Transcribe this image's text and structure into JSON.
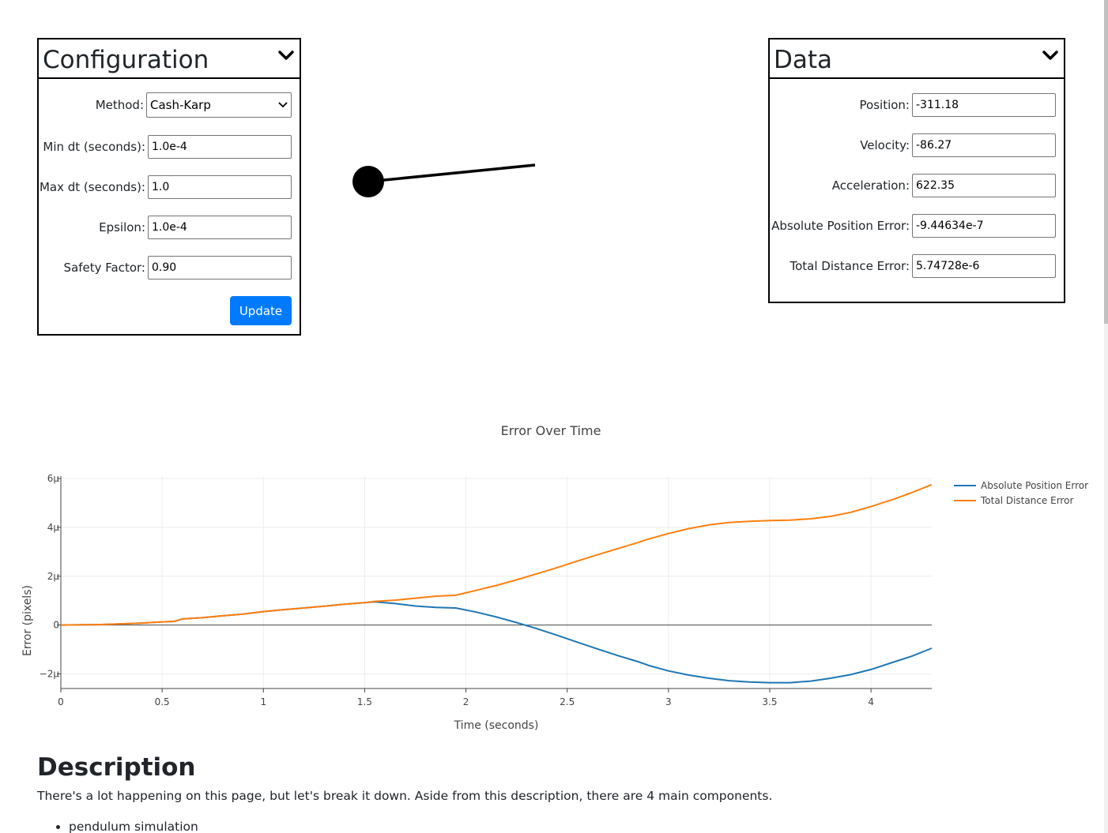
{
  "config": {
    "title": "Configuration",
    "method_label": "Method:",
    "method_value": "Cash-Karp",
    "min_dt_label": "Min dt (seconds):",
    "min_dt_value": "1.0e-4",
    "max_dt_label": "Max dt (seconds):",
    "max_dt_value": "1.0",
    "epsilon_label": "Epsilon:",
    "epsilon_value": "1.0e-4",
    "safety_label": "Safety Factor:",
    "safety_value": "0.90",
    "update_label": "Update"
  },
  "data_panel": {
    "title": "Data",
    "position_label": "Position:",
    "position_value": "-311.18",
    "velocity_label": "Velocity:",
    "velocity_value": "-86.27",
    "acceleration_label": "Acceleration:",
    "acceleration_value": "622.35",
    "abs_err_label": "Absolute Position Error:",
    "abs_err_value": "-9.44634e-7",
    "total_err_label": "Total Distance Error:",
    "total_err_value": "5.74728e-6"
  },
  "chart_data": {
    "type": "line",
    "title": "Error Over Time",
    "xlabel": "Time (seconds)",
    "ylabel": "Error (pixels)",
    "xlim": [
      0,
      4.3
    ],
    "ylim": [
      -2.6,
      6.1
    ],
    "x_ticks": [
      0,
      0.5,
      1,
      1.5,
      2,
      2.5,
      3,
      3.5,
      4
    ],
    "x_tick_labels": [
      "0",
      "0.5",
      "1",
      "1.5",
      "2",
      "2.5",
      "3",
      "3.5",
      "4"
    ],
    "y_ticks": [
      -2,
      0,
      2,
      4,
      6
    ],
    "y_tick_labels": [
      "−2µ",
      "0",
      "2µ",
      "4µ",
      "6µ"
    ],
    "grid": true,
    "legend_position": "top-right",
    "series": [
      {
        "name": "Absolute Position Error",
        "color": "#1f77b4",
        "x": [
          0,
          0.2,
          0.3,
          0.4,
          0.5,
          0.56,
          0.6,
          0.7,
          0.8,
          0.9,
          1.0,
          1.1,
          1.2,
          1.3,
          1.4,
          1.5,
          1.55,
          1.65,
          1.75,
          1.85,
          1.95,
          2.05,
          2.15,
          2.25,
          2.35,
          2.45,
          2.55,
          2.65,
          2.75,
          2.85,
          2.9,
          3.0,
          3.1,
          3.2,
          3.3,
          3.4,
          3.5,
          3.6,
          3.7,
          3.8,
          3.9,
          4.0,
          4.1,
          4.2,
          4.3
        ],
        "y": [
          0,
          0.02,
          0.05,
          0.08,
          0.13,
          0.15,
          0.25,
          0.3,
          0.38,
          0.45,
          0.55,
          0.63,
          0.7,
          0.77,
          0.85,
          0.92,
          0.95,
          0.88,
          0.78,
          0.72,
          0.7,
          0.53,
          0.33,
          0.1,
          -0.15,
          -0.42,
          -0.7,
          -0.98,
          -1.25,
          -1.5,
          -1.65,
          -1.88,
          -2.05,
          -2.18,
          -2.28,
          -2.33,
          -2.36,
          -2.36,
          -2.3,
          -2.18,
          -2.03,
          -1.82,
          -1.55,
          -1.28,
          -0.95
        ]
      },
      {
        "name": "Total Distance Error",
        "color": "#ff7f0e",
        "x": [
          0,
          0.2,
          0.3,
          0.4,
          0.5,
          0.56,
          0.6,
          0.7,
          0.8,
          0.9,
          1.0,
          1.1,
          1.2,
          1.3,
          1.4,
          1.5,
          1.55,
          1.65,
          1.75,
          1.85,
          1.95,
          2.05,
          2.15,
          2.25,
          2.35,
          2.45,
          2.55,
          2.65,
          2.75,
          2.85,
          2.9,
          3.0,
          3.1,
          3.2,
          3.3,
          3.4,
          3.5,
          3.6,
          3.7,
          3.8,
          3.9,
          4.0,
          4.1,
          4.2,
          4.3
        ],
        "y": [
          0,
          0.02,
          0.05,
          0.08,
          0.13,
          0.15,
          0.25,
          0.3,
          0.38,
          0.45,
          0.55,
          0.63,
          0.7,
          0.77,
          0.85,
          0.92,
          0.97,
          1.02,
          1.1,
          1.18,
          1.22,
          1.42,
          1.62,
          1.85,
          2.1,
          2.35,
          2.62,
          2.88,
          3.13,
          3.38,
          3.52,
          3.75,
          3.95,
          4.1,
          4.2,
          4.25,
          4.28,
          4.3,
          4.35,
          4.45,
          4.62,
          4.85,
          5.12,
          5.42,
          5.75
        ]
      }
    ]
  },
  "description": {
    "title": "Description",
    "text": "There's a lot happening on this page, but let's break it down. Aside from this description, there are 4 main components.",
    "list": [
      "pendulum simulation"
    ]
  }
}
